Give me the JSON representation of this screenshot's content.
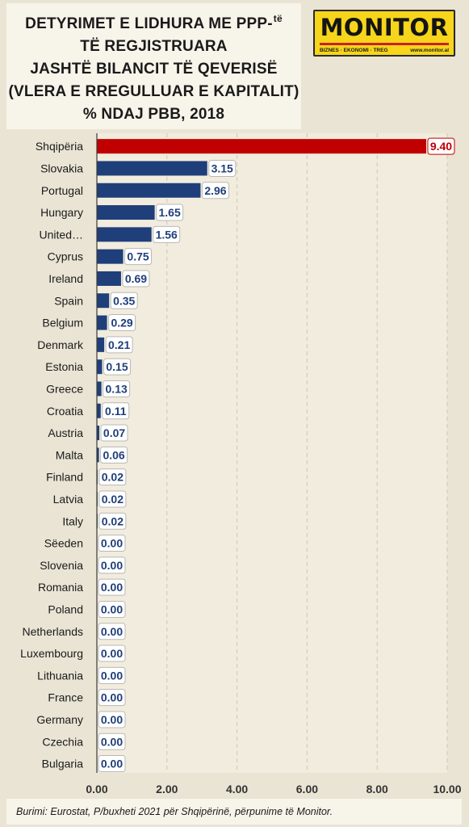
{
  "title": {
    "line1": "DETYRIMET E LIDHURA ME  PPP-",
    "line1_sup": "të",
    "line2": "TË REGJISTRUARA",
    "line3": "JASHTË BILANCIT TË QEVERISË",
    "line4": "(VLERA E RREGULLUAR E KAPITALIT)",
    "line5": "% NDAJ PBB, 2018"
  },
  "logo": {
    "name": "MONITOR",
    "tagline_left": "BIZNES · EKONOMI · TREG",
    "tagline_right": "www.monitor.al"
  },
  "footer": {
    "source": "Burimi: Eurostat, P/buxheti 2021 për Shqipërinë, përpunime të Monitor."
  },
  "chart_data": {
    "type": "bar",
    "orientation": "horizontal",
    "categories": [
      "Shqipëria",
      "Slovakia",
      "Portugal",
      "Hungary",
      "United…",
      "Cyprus",
      "Ireland",
      "Spain",
      "Belgium",
      "Denmark",
      "Estonia",
      "Greece",
      "Croatia",
      "Austria",
      "Malta",
      "Finland",
      "Latvia",
      "Italy",
      "Sëeden",
      "Slovenia",
      "Romania",
      "Poland",
      "Netherlands",
      "Luxembourg",
      "Lithuania",
      "France",
      "Germany",
      "Czechia",
      "Bulgaria"
    ],
    "values": [
      9.4,
      3.15,
      2.96,
      1.65,
      1.56,
      0.75,
      0.69,
      0.35,
      0.29,
      0.21,
      0.15,
      0.13,
      0.11,
      0.07,
      0.06,
      0.02,
      0.02,
      0.02,
      0.0,
      0.0,
      0.0,
      0.0,
      0.0,
      0.0,
      0.0,
      0.0,
      0.0,
      0.0,
      0.0
    ],
    "value_labels": [
      "9.40",
      "3.15",
      "2.96",
      "1.65",
      "1.56",
      "0.75",
      "0.69",
      "0.35",
      "0.29",
      "0.21",
      "0.15",
      "0.13",
      "0.11",
      "0.07",
      "0.06",
      "0.02",
      "0.02",
      "0.02",
      "0.00",
      "0.00",
      "0.00",
      "0.00",
      "0.00",
      "0.00",
      "0.00",
      "0.00",
      "0.00",
      "0.00",
      "0.00"
    ],
    "xlim": [
      0,
      10
    ],
    "xticks": [
      "0.00",
      "2.00",
      "4.00",
      "6.00",
      "8.00",
      "10.00"
    ],
    "grid": "vertical dashed",
    "colors": {
      "highlight": "#c00000",
      "bar": "#1f3f7a",
      "label_text_highlight": "#c00000",
      "label_text": "#1f3f7a"
    }
  }
}
